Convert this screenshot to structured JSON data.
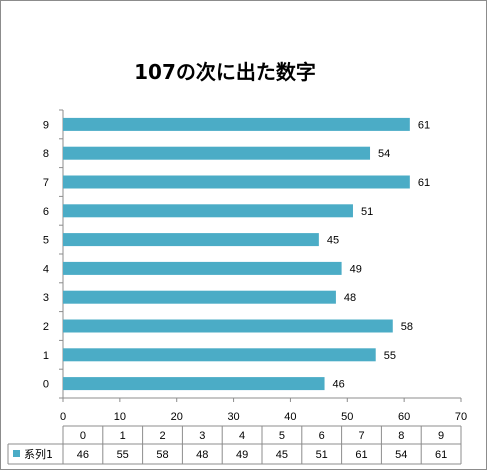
{
  "chart_data": {
    "type": "bar",
    "orientation": "horizontal",
    "title": "107の次に出た数字",
    "categories": [
      "0",
      "1",
      "2",
      "3",
      "4",
      "5",
      "6",
      "7",
      "8",
      "9"
    ],
    "series": [
      {
        "name": "系列1",
        "values": [
          46,
          55,
          58,
          48,
          49,
          45,
          51,
          61,
          54,
          61
        ]
      }
    ],
    "xlim": [
      0,
      70
    ],
    "x_ticks": [
      "0",
      "10",
      "20",
      "30",
      "40",
      "50",
      "60",
      "70"
    ],
    "data_labels": true,
    "grid": false,
    "data_table": true,
    "legend": "in-data-table",
    "bar_color": "#4bacc6"
  }
}
